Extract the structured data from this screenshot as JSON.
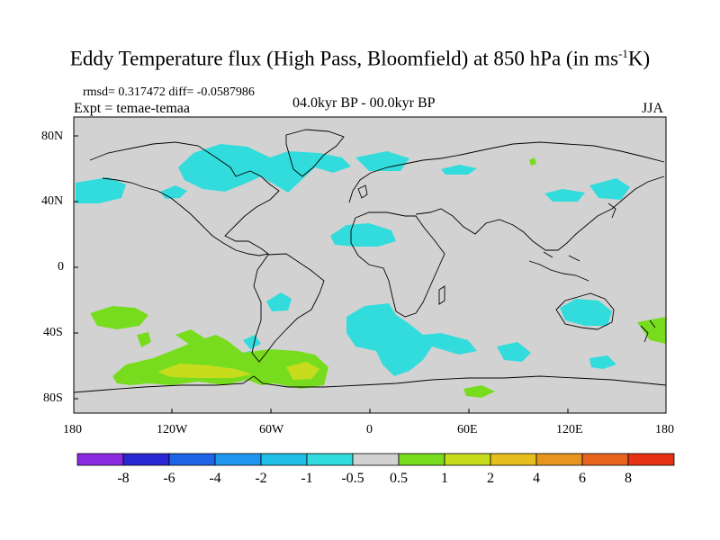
{
  "title": {
    "main": "Eddy Temperature flux (High Pass, Bloomfield) at 850 hPa (in ms",
    "sup": "-1",
    "tail": "K)"
  },
  "header": {
    "stats": "rmsd= 0.317472 diff= -0.0587986",
    "experiment": "Expt = temae-temaa",
    "period": "04.0kyr BP - 00.0kyr BP",
    "season": "JJA"
  },
  "axes": {
    "y_ticks": [
      "80N",
      "40N",
      "0",
      "40S",
      "80S"
    ],
    "x_ticks": [
      "180",
      "120W",
      "60W",
      "0",
      "60E",
      "120E",
      "180"
    ]
  },
  "colorbar": {
    "labels": [
      "-8",
      "-6",
      "-4",
      "-2",
      "-1",
      "-0.5",
      "0.5",
      "1",
      "2",
      "4",
      "6",
      "8"
    ],
    "colors": [
      "#8a2be2",
      "#2828d2",
      "#1e64e6",
      "#1e96f0",
      "#1ebee6",
      "#32dcdc",
      "#d2d2d2",
      "#78dc1e",
      "#c8dc1e",
      "#e6be1e",
      "#e6961e",
      "#e6641e",
      "#e63214"
    ]
  },
  "colors": {
    "land_background": "#d2d2d2",
    "coast": "#000000"
  }
}
